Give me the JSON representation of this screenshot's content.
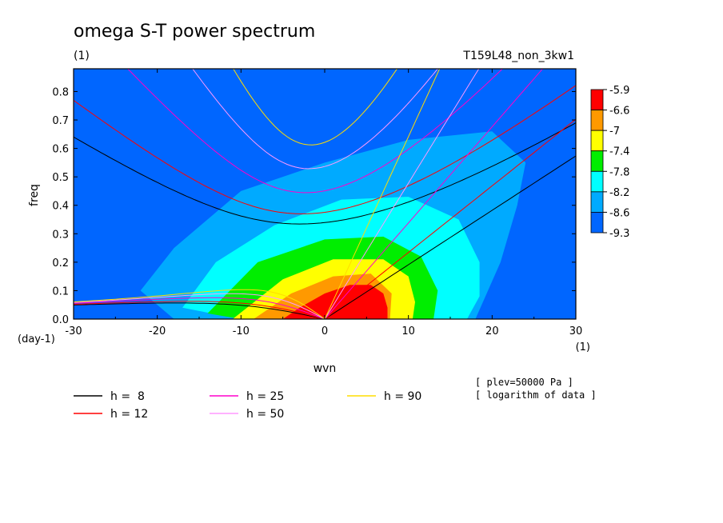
{
  "chart_data": {
    "type": "heatmap",
    "title": "omega S-T power spectrum",
    "subtitle_left": "(1)",
    "subtitle_right": "T159L48_non_3kw1",
    "xlabel": "wvn",
    "ylabel": "freq",
    "x_unit": "(1)",
    "y_unit": "(day-1)",
    "xlim": [
      -30,
      30
    ],
    "ylim": [
      0,
      0.88
    ],
    "xticks": [
      -30,
      -20,
      -10,
      0,
      10,
      20,
      30
    ],
    "yticks": [
      0.0,
      0.1,
      0.2,
      0.3,
      0.4,
      0.5,
      0.6,
      0.7,
      0.8
    ],
    "colorbar": {
      "levels": [
        "-5.9",
        "-6.6",
        "-7",
        "-7.4",
        "-7.8",
        "-8.2",
        "-8.6",
        "-9.3"
      ],
      "colors": [
        "#ff0000",
        "#ff9900",
        "#ffff00",
        "#00ee00",
        "#00ffff",
        "#00aaff",
        "#0066ff"
      ]
    },
    "background_color": "#0066ff",
    "contours": [
      {
        "fill": "#00aaff",
        "x": [
          -22,
          -18,
          -10,
          0,
          10,
          20,
          24,
          23,
          21,
          18,
          10,
          0,
          -10,
          -18,
          -22
        ],
        "y": [
          0.1,
          0.25,
          0.45,
          0.55,
          0.63,
          0.66,
          0.55,
          0.4,
          0.2,
          0.0,
          0.0,
          0.0,
          0.0,
          0.0,
          0.1
        ]
      },
      {
        "fill": "#00ffff",
        "x": [
          -17,
          -13,
          -6,
          2,
          10,
          16,
          18.5,
          18.5,
          17,
          10,
          0,
          -10,
          -17
        ],
        "y": [
          0.04,
          0.2,
          0.33,
          0.42,
          0.43,
          0.35,
          0.2,
          0.08,
          0.0,
          0.0,
          0.0,
          0.0,
          0.04
        ]
      },
      {
        "fill": "#00ee00",
        "x": [
          -14,
          -8,
          0,
          7,
          11.5,
          13.5,
          13,
          10,
          0,
          -10,
          -14
        ],
        "y": [
          0.02,
          0.2,
          0.28,
          0.29,
          0.22,
          0.1,
          0.0,
          0.0,
          0.0,
          0.0,
          0.02
        ]
      },
      {
        "fill": "#ffff00",
        "x": [
          -11,
          -5,
          1,
          7,
          10,
          10.8,
          10.5,
          5,
          0,
          -5,
          -11
        ],
        "y": [
          0.0,
          0.14,
          0.21,
          0.21,
          0.15,
          0.06,
          0.0,
          0.0,
          0.0,
          0.0,
          0.0
        ]
      },
      {
        "fill": "#ff9900",
        "x": [
          -8.5,
          -4,
          1,
          5.5,
          8,
          7.8,
          3,
          -3,
          -8.5
        ],
        "y": [
          0.0,
          0.09,
          0.15,
          0.16,
          0.09,
          0.0,
          0.0,
          0.0,
          0.0
        ]
      },
      {
        "fill": "#ff0000",
        "x": [
          -5,
          -3,
          0,
          3,
          5.5,
          7,
          7.5,
          7.5,
          3,
          -2,
          -5
        ],
        "y": [
          0.0,
          0.04,
          0.09,
          0.12,
          0.12,
          0.09,
          0.04,
          0.0,
          0.0,
          0.0,
          0.0
        ]
      }
    ],
    "dispersion_curves": [
      {
        "name": "h =  8",
        "color": "#000000"
      },
      {
        "name": "h = 12",
        "color": "#ff0000"
      },
      {
        "name": "h = 25",
        "color": "#ff00cc"
      },
      {
        "name": "h = 50",
        "color": "#ff99ff"
      },
      {
        "name": "h = 90",
        "color": "#ffdd00"
      }
    ],
    "notes": [
      "[ plev=50000 Pa ]",
      "[ logarithm of data ]"
    ]
  }
}
